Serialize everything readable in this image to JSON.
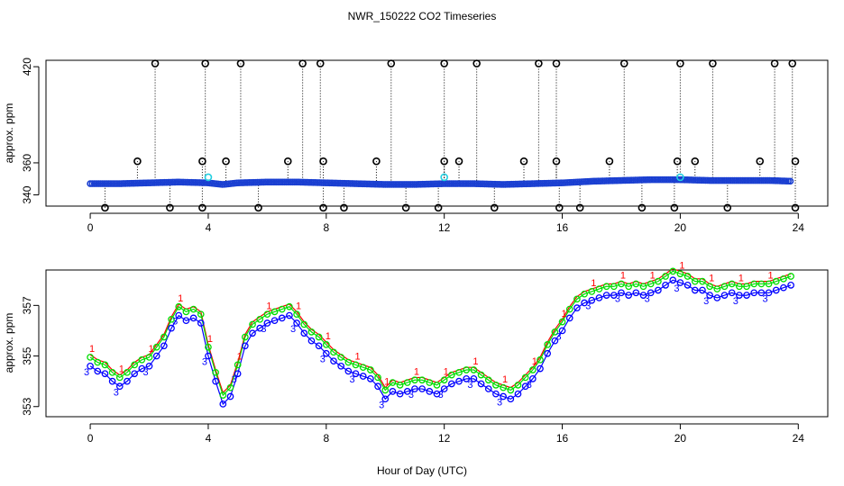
{
  "chart_data": [
    {
      "type": "scatter",
      "panel": "top",
      "title": "NWR_150222  CO2 Timeseries",
      "xlabel": "",
      "ylabel": "approx. ppm",
      "xlim": [
        -1.5,
        25
      ],
      "ylim": [
        333,
        424
      ],
      "xticks": [
        0,
        4,
        8,
        12,
        16,
        20,
        24
      ],
      "xtick_labels": [
        "0",
        "4",
        "8",
        "12",
        "16",
        "20",
        "24"
      ],
      "yticks": [
        340,
        360,
        420
      ],
      "ytick_labels": [
        "340",
        "360",
        "420"
      ],
      "baseline": {
        "x": [
          0,
          1,
          2,
          3,
          4,
          4.5,
          5,
          6,
          7,
          8,
          9,
          10,
          11,
          12,
          13,
          14,
          15,
          16,
          17,
          18,
          19,
          20,
          21,
          22,
          23,
          23.8
        ],
        "y": [
          347,
          347,
          347.5,
          348,
          347.5,
          346.5,
          347.5,
          348,
          348,
          347.5,
          347,
          346.5,
          346.5,
          347,
          347,
          346.5,
          347,
          347.5,
          348.5,
          349,
          349.5,
          349.5,
          349,
          349,
          349,
          348.5
        ]
      },
      "outliers_high": {
        "x": [
          2.2,
          3.9,
          5.1,
          7.2,
          7.8,
          10.2,
          12.0,
          13.1,
          15.2,
          15.8,
          18.1,
          20.0,
          21.1,
          23.2,
          23.8
        ],
        "y": [
          422,
          422,
          422,
          422,
          422,
          422,
          422,
          422,
          422,
          422,
          422,
          422,
          422,
          422,
          422
        ]
      },
      "outliers_mid": {
        "x": [
          1.6,
          3.8,
          4.6,
          6.7,
          7.9,
          9.7,
          12.0,
          12.5,
          14.7,
          15.8,
          17.6,
          19.9,
          20.5,
          22.7,
          23.9
        ],
        "y": [
          361,
          361,
          361,
          361,
          361,
          361,
          361,
          361,
          361,
          361,
          361,
          361,
          361,
          361,
          361
        ]
      },
      "outliers_low": {
        "x": [
          0.5,
          2.7,
          3.8,
          5.7,
          7.9,
          8.6,
          10.7,
          11.8,
          13.7,
          15.9,
          16.6,
          18.7,
          19.8,
          21.6,
          23.9
        ],
        "y": [
          332,
          332,
          332,
          332,
          332,
          332,
          332,
          332,
          332,
          332,
          332,
          332,
          332,
          332,
          332
        ]
      },
      "cyan_points": {
        "x": [
          4.0,
          12.0,
          20.0
        ],
        "y": [
          351,
          351,
          351
        ]
      }
    },
    {
      "type": "scatter",
      "panel": "bottom",
      "title": "",
      "xlabel": "Hour of Day (UTC)",
      "ylabel": "approx. ppm",
      "xlim": [
        -1.5,
        25
      ],
      "ylim": [
        352.6,
        358.4
      ],
      "xticks": [
        0,
        4,
        8,
        12,
        16,
        20,
        24
      ],
      "xtick_labels": [
        "0",
        "4",
        "8",
        "12",
        "16",
        "20",
        "24"
      ],
      "yticks": [
        353,
        355,
        357
      ],
      "ytick_labels": [
        "353",
        "355",
        "357"
      ],
      "marker_labels": [
        "1",
        "2",
        "3"
      ],
      "series_colors": [
        "#ff0000",
        "#00dd00",
        "#0000ff"
      ],
      "series_offsets": [
        0.25,
        0.15,
        -0.2
      ],
      "x": [
        0,
        0.25,
        0.5,
        0.75,
        1,
        1.25,
        1.5,
        1.75,
        2,
        2.25,
        2.5,
        2.75,
        3,
        3.25,
        3.5,
        3.75,
        4,
        4.25,
        4.5,
        4.75,
        5,
        5.25,
        5.5,
        5.75,
        6,
        6.25,
        6.5,
        6.75,
        7,
        7.25,
        7.5,
        7.75,
        8,
        8.25,
        8.5,
        8.75,
        9,
        9.25,
        9.5,
        9.75,
        10,
        10.25,
        10.5,
        10.75,
        11,
        11.25,
        11.5,
        11.75,
        12,
        12.25,
        12.5,
        12.75,
        13,
        13.25,
        13.5,
        13.75,
        14,
        14.25,
        14.5,
        14.75,
        15,
        15.25,
        15.5,
        15.75,
        16,
        16.25,
        16.5,
        16.75,
        17,
        17.25,
        17.5,
        17.75,
        18,
        18.25,
        18.5,
        18.75,
        19,
        19.25,
        19.5,
        19.75,
        20,
        20.25,
        20.5,
        20.75,
        21,
        21.25,
        21.5,
        21.75,
        22,
        22.25,
        22.5,
        22.75,
        23,
        23.25,
        23.5,
        23.75
      ],
      "y": [
        354.8,
        354.6,
        354.5,
        354.2,
        354.0,
        354.2,
        354.5,
        354.7,
        354.8,
        355.2,
        355.6,
        356.3,
        356.8,
        356.6,
        356.7,
        356.5,
        355.2,
        354.2,
        353.3,
        353.6,
        354.5,
        355.6,
        356.1,
        356.3,
        356.5,
        356.6,
        356.7,
        356.8,
        356.5,
        356.1,
        355.8,
        355.6,
        355.3,
        355.0,
        354.8,
        354.6,
        354.5,
        354.4,
        354.3,
        354.0,
        353.5,
        353.8,
        353.7,
        353.8,
        353.9,
        353.9,
        353.8,
        353.7,
        353.9,
        354.1,
        354.2,
        354.3,
        354.3,
        354.1,
        353.9,
        353.7,
        353.6,
        353.5,
        353.7,
        354.0,
        354.3,
        354.7,
        355.3,
        355.8,
        356.2,
        356.7,
        357.1,
        357.3,
        357.4,
        357.5,
        357.6,
        357.6,
        357.7,
        357.6,
        357.7,
        357.6,
        357.7,
        357.8,
        358.0,
        358.2,
        358.1,
        358.0,
        357.8,
        357.8,
        357.6,
        357.5,
        357.6,
        357.7,
        357.6,
        357.6,
        357.7,
        357.7,
        357.7,
        357.8,
        357.9,
        358.0
      ]
    }
  ]
}
